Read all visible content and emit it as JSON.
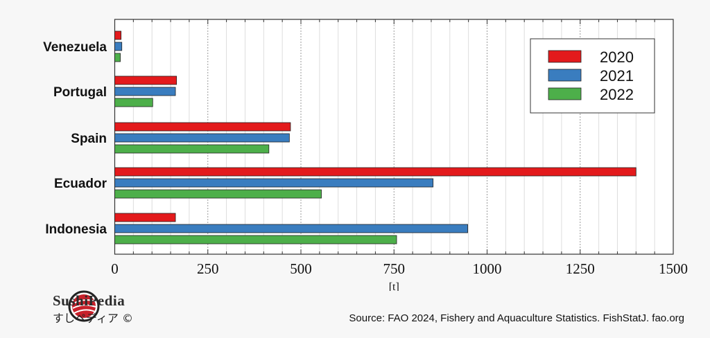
{
  "chart_data": {
    "type": "bar",
    "orientation": "horizontal",
    "categories": [
      "Venezuela",
      "Portugal",
      "Spain",
      "Ecuador",
      "Indonesia"
    ],
    "series": [
      {
        "name": "2020",
        "color": "#e31a1c",
        "values": [
          17,
          166,
          472,
          1400,
          163
        ]
      },
      {
        "name": "2021",
        "color": "#3a7dbf",
        "values": [
          19,
          163,
          469,
          855,
          948
        ]
      },
      {
        "name": "2022",
        "color": "#4daf4a",
        "values": [
          15,
          102,
          414,
          555,
          757
        ]
      }
    ],
    "xlabel": "[t]",
    "xlim": [
      0,
      1500
    ],
    "xticks": [
      "0",
      "250",
      "500",
      "750",
      "1000",
      "1250",
      "1500"
    ],
    "grid": true,
    "legend_position": "top-right"
  },
  "branding": {
    "name": "SushiPedia",
    "name_jp": "すしペディア ©"
  },
  "source": "Source: FAO 2024, Fishery and Aquaculture Statistics. FishStatJ. fao.org"
}
